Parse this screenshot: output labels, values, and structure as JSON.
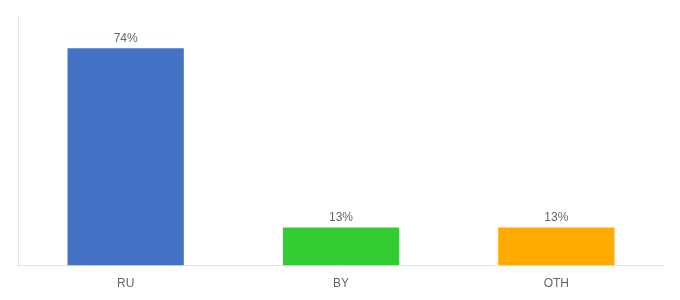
{
  "chart_data": {
    "type": "bar",
    "categories": [
      "RU",
      "BY",
      "OTH"
    ],
    "values": [
      74,
      13,
      13
    ],
    "value_labels": [
      "74%",
      "13%",
      "13%"
    ],
    "colors": [
      "#4472c4",
      "#33cc33",
      "#ffaa00"
    ],
    "ylim": [
      0,
      85
    ],
    "grid": false,
    "data_labels": true,
    "tick_labels": "x"
  }
}
